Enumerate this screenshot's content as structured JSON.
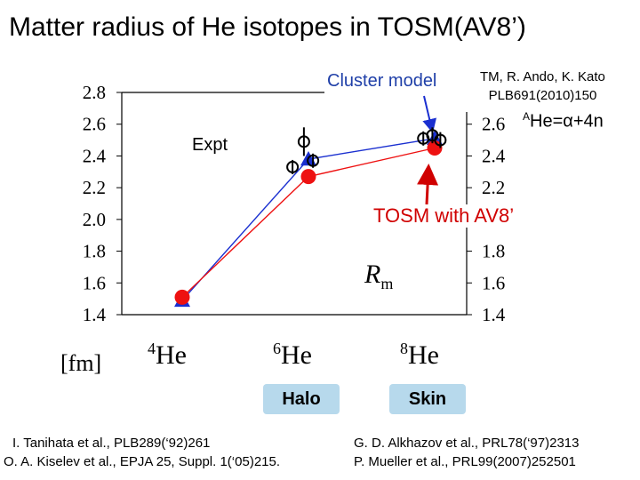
{
  "title": "Matter radius of He isotopes in TOSM(AV8’)",
  "reference_top": [
    "TM, R. Ando, K. Kato",
    "PLB691(2010)150"
  ],
  "labels": {
    "cluster_model": "Cluster model",
    "alpha_prefix": "A",
    "alpha_rest": "He=α+4n",
    "expt": "Expt",
    "tosm": "TOSM with AV8’",
    "rm_main": "R",
    "rm_sub": "m",
    "unit": "[fm]"
  },
  "badges": [
    "Halo",
    "Skin"
  ],
  "references_bottom": [
    "I. Tanihata et al., PLB289(‘92)261",
    "G. D. Alkhazov et al., PRL78(‘97)2313",
    "O. A. Kiselev et al., EPJA 25, Suppl. 1(‘05)215.",
    "P. Mueller et al., PRL99(2007)252501"
  ],
  "colors": {
    "tosm": "#ee1111",
    "cluster": "#1a2fd0",
    "badge": "#b7d9ec"
  },
  "chart_data": {
    "type": "line",
    "categories": [
      "He",
      "He",
      "He"
    ],
    "category_mass_numbers": [
      "4",
      "6",
      "8"
    ],
    "ylim": [
      1.4,
      2.8
    ],
    "yticks_left": [
      "2.8",
      "2.6",
      "2.4",
      "2.2",
      "2.0",
      "1.8",
      "1.6",
      "1.4"
    ],
    "yticks_right": [
      "2.6",
      "2.4",
      "2.2",
      "2.0",
      "1.8",
      "1.6",
      "1.4"
    ],
    "series": [
      {
        "name": "TOSM with AV8’",
        "marker": "circle",
        "values": [
          1.51,
          2.27,
          2.45
        ]
      },
      {
        "name": "Cluster model",
        "marker": "triangle",
        "values": [
          1.49,
          2.38,
          2.51
        ]
      }
    ],
    "experiment": [
      {
        "category": 1,
        "offset": -0.28,
        "value": 2.33,
        "err": 0.04
      },
      {
        "category": 1,
        "offset": -0.08,
        "value": 2.49,
        "err": 0.09
      },
      {
        "category": 1,
        "offset": 0.08,
        "value": 2.37,
        "err": 0.04
      },
      {
        "category": 2,
        "offset": -0.2,
        "value": 2.51,
        "err": 0.04
      },
      {
        "category": 2,
        "offset": -0.04,
        "value": 2.53,
        "err": 0.05
      },
      {
        "category": 2,
        "offset": 0.1,
        "value": 2.5,
        "err": 0.05
      }
    ]
  }
}
